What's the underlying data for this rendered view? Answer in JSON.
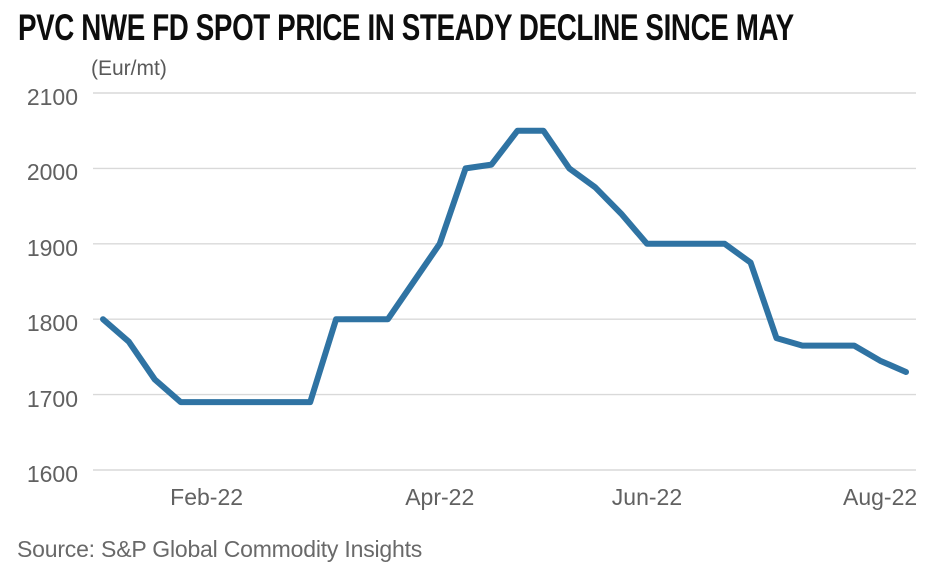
{
  "header": {
    "title": "PVC NWE FD SPOT PRICE IN STEADY DECLINE SINCE MAY",
    "unit_label": "(Eur/mt)"
  },
  "footer": {
    "source": "Source: S&P Global Commodity Insights"
  },
  "chart_data": {
    "type": "line",
    "title": "PVC NWE FD SPOT PRICE IN STEADY DECLINE SINCE MAY",
    "ylabel": "(Eur/mt)",
    "series_name": "PVC NWE FD spot price",
    "values": [
      1800,
      1770,
      1720,
      1690,
      1690,
      1690,
      1690,
      1690,
      1690,
      1800,
      1800,
      1800,
      1850,
      1900,
      2000,
      2005,
      2050,
      2050,
      2000,
      1975,
      1940,
      1900,
      1900,
      1900,
      1900,
      1875,
      1775,
      1765,
      1765,
      1765,
      1745,
      1730
    ],
    "x_tick_labels": [
      "Feb-22",
      "Apr-22",
      "Jun-22",
      "Aug-22"
    ],
    "x_tick_point_indices": [
      4,
      13,
      21,
      30
    ],
    "y_ticks": [
      2100,
      2000,
      1900,
      1800,
      1700,
      1600
    ],
    "ylim": [
      1600,
      2100
    ],
    "grid": "horizontal",
    "legend": "none",
    "line_color": "#2f73a3",
    "grid_color": "#d9d9d9",
    "tick_label_color": "#616161",
    "title_color": "#0d0d0d",
    "source_color": "#696969"
  }
}
